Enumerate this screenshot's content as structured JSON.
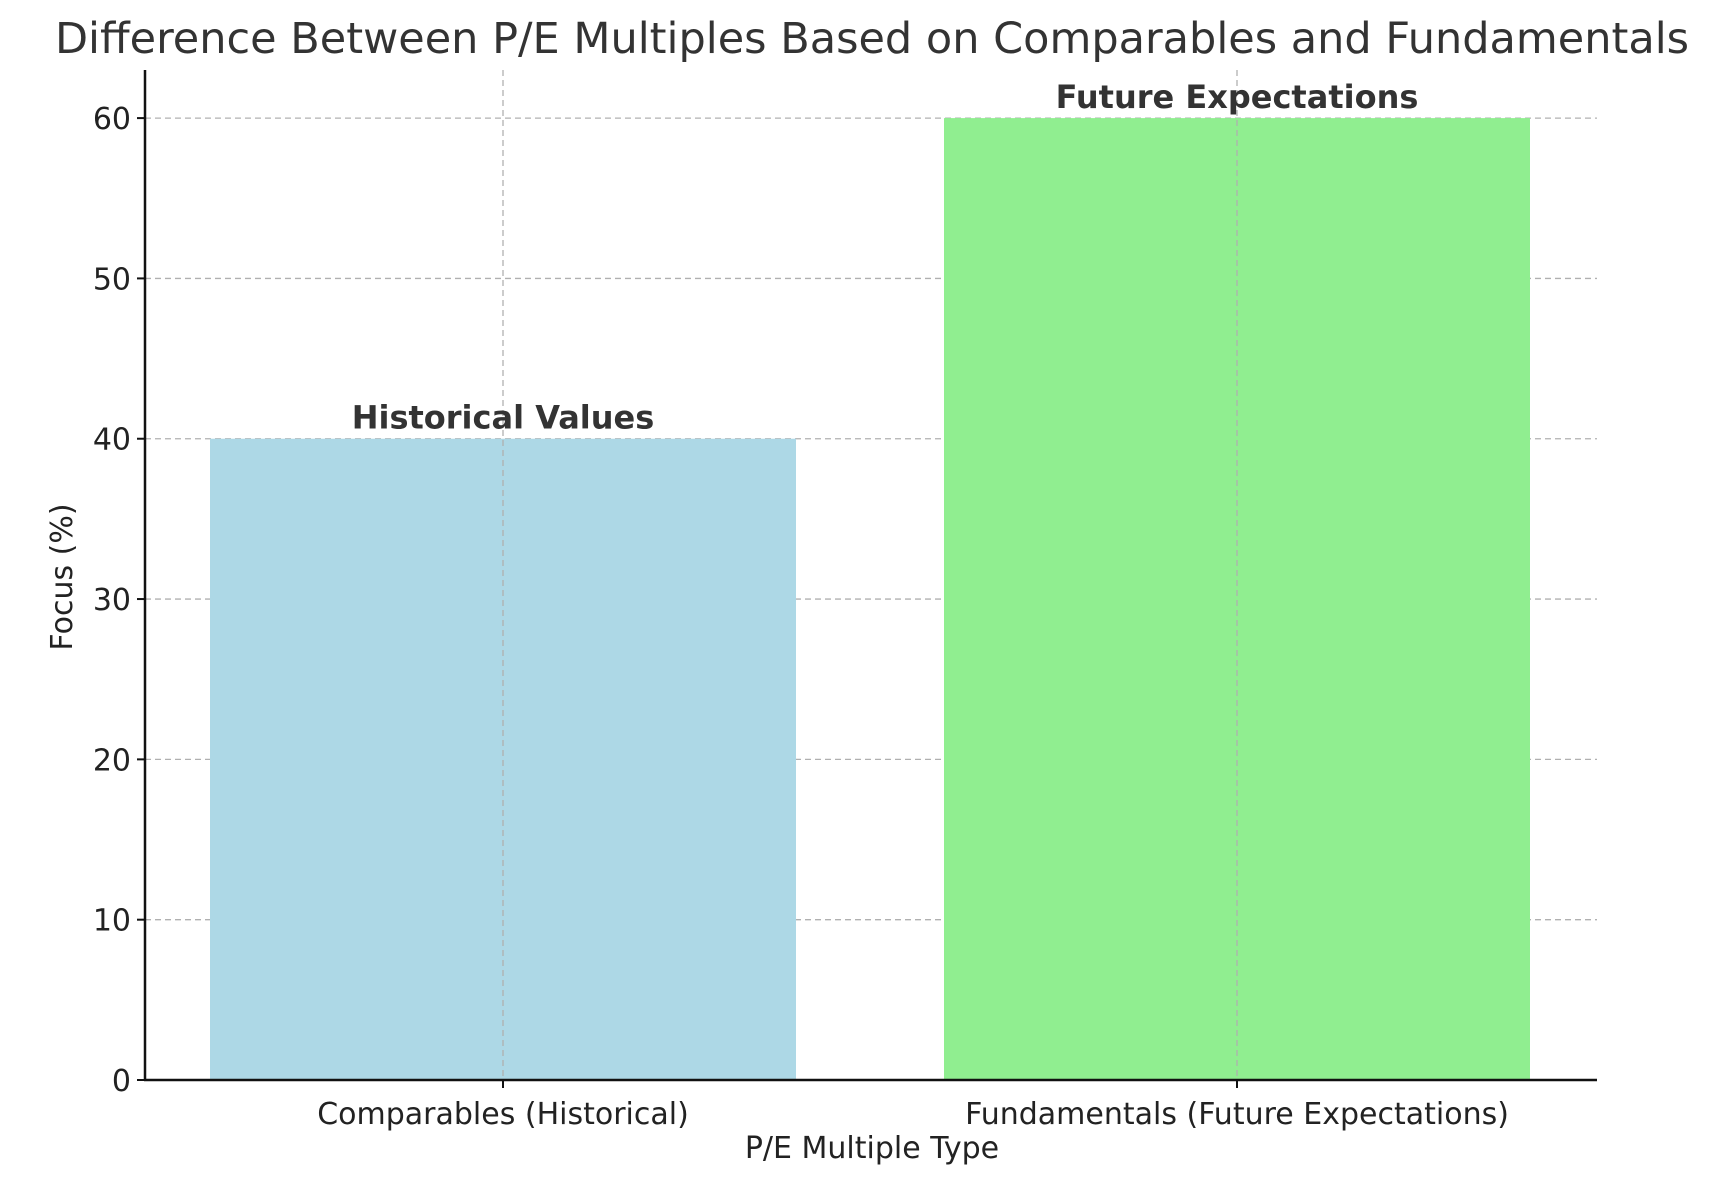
{
  "chart_data": {
    "type": "bar",
    "title": "Difference Between P/E Multiples Based on Comparables and Fundamentals",
    "xlabel": "P/E Multiple Type",
    "ylabel": "Focus (%)",
    "categories": [
      "Comparables (Historical)",
      "Fundamentals (Future Expectations)"
    ],
    "values": [
      40,
      60
    ],
    "bar_labels": [
      "Historical Values",
      "Future Expectations"
    ],
    "colors": [
      "#add8e6",
      "#90ee90"
    ],
    "ylim": [
      0,
      63
    ],
    "yticks": [
      0,
      10,
      20,
      30,
      40,
      50,
      60
    ],
    "grid": true
  }
}
